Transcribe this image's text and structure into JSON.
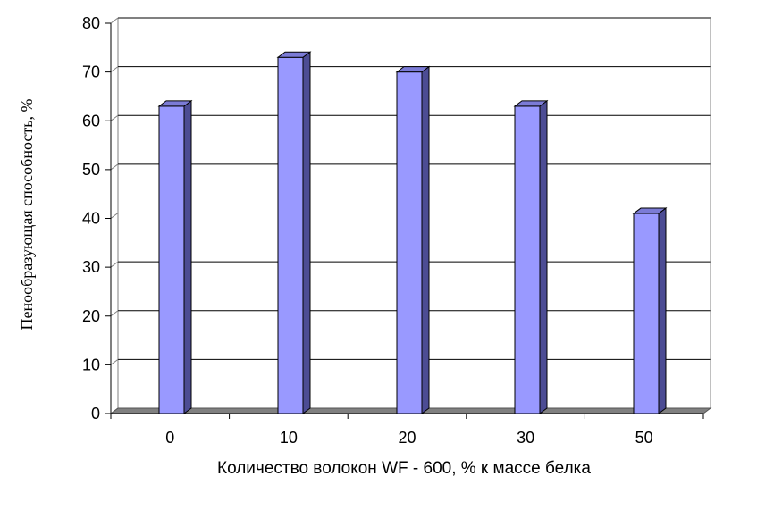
{
  "chart_data": {
    "type": "bar",
    "categories": [
      "0",
      "10",
      "20",
      "30",
      "50"
    ],
    "values": [
      63,
      73,
      70,
      63,
      41
    ],
    "title": "",
    "xlabel": "Количество волокон WF - 600, % к массе белка",
    "ylabel": "Пенообразующая способность, %",
    "ylim": [
      0,
      80
    ],
    "yticks": [
      0,
      10,
      20,
      30,
      40,
      50,
      60,
      70,
      80
    ],
    "grid": true,
    "style": "3d-column"
  },
  "colors": {
    "bar_front": "#9999ff",
    "bar_side": "#4c4c94",
    "bar_top": "#7b7bd6",
    "floor": "#808080",
    "gridline": "#000000"
  }
}
